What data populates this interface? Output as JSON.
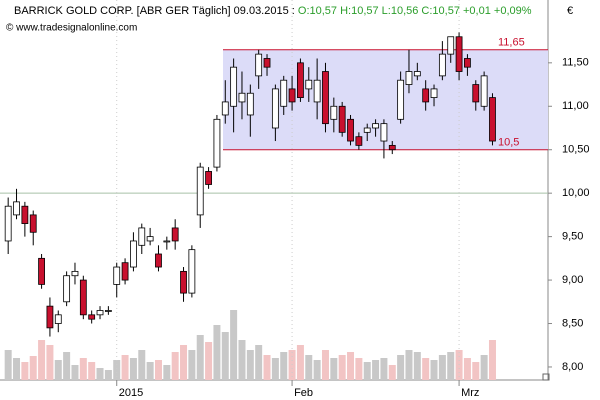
{
  "chart_data": {
    "type": "candlestick",
    "title": "BARRICK GOLD CORP. [ABR GER Täglich] 09.03.2015 :",
    "quote": "O:10,57 H:10,57 L:10,56 C:10,57 +0,01 +0,09%",
    "watermark": "© www.tradesignalonline.com",
    "currency": "€",
    "categories": [
      null,
      null,
      null,
      null,
      null,
      null,
      null,
      null,
      null,
      null,
      null,
      null,
      null,
      "2015",
      null,
      null,
      null,
      null,
      null,
      null,
      null,
      null,
      null,
      null,
      null,
      null,
      null,
      null,
      null,
      null,
      null,
      null,
      null,
      null,
      "Feb",
      null,
      null,
      null,
      null,
      null,
      null,
      null,
      null,
      null,
      null,
      null,
      null,
      null,
      null,
      null,
      null,
      null,
      null,
      null,
      "Mrz",
      null,
      null,
      null,
      null
    ],
    "open": [
      9.45,
      9.75,
      9.85,
      9.75,
      9.25,
      8.7,
      8.5,
      8.75,
      9.05,
      9.0,
      8.6,
      8.6,
      8.65,
      8.95,
      9.2,
      9.15,
      9.4,
      9.45,
      9.3,
      9.45,
      9.6,
      9.1,
      8.85,
      9.75,
      10.25,
      10.3,
      10.9,
      11.0,
      11.05,
      10.9,
      11.35,
      11.55,
      10.75,
      11.0,
      11.2,
      11.5,
      11.2,
      11.05,
      11.4,
      10.85,
      11.0,
      10.85,
      10.65,
      10.7,
      10.75,
      10.6,
      10.55,
      10.85,
      11.25,
      11.35,
      11.2,
      11.1,
      11.35,
      11.6,
      11.8,
      11.55,
      11.25,
      11.0,
      11.1
    ],
    "high": [
      9.95,
      10.05,
      9.9,
      9.8,
      9.3,
      8.8,
      8.65,
      9.1,
      9.2,
      9.05,
      8.65,
      8.7,
      8.7,
      9.2,
      9.25,
      9.55,
      9.65,
      9.6,
      9.4,
      9.5,
      9.7,
      9.15,
      9.4,
      10.35,
      10.3,
      10.9,
      11.3,
      11.55,
      11.4,
      11.25,
      11.65,
      11.6,
      11.25,
      11.35,
      11.35,
      11.55,
      11.45,
      11.55,
      11.5,
      11.1,
      11.05,
      10.9,
      10.7,
      10.8,
      10.85,
      10.85,
      10.6,
      11.4,
      11.65,
      11.5,
      11.3,
      11.25,
      11.75,
      11.8,
      11.85,
      11.6,
      11.3,
      11.4,
      11.15
    ],
    "low": [
      9.3,
      9.7,
      9.5,
      9.4,
      8.9,
      8.35,
      8.4,
      8.7,
      8.95,
      8.55,
      8.5,
      8.55,
      8.6,
      8.8,
      8.95,
      9.1,
      9.3,
      9.4,
      9.1,
      9.35,
      9.35,
      8.75,
      8.8,
      9.6,
      10.05,
      10.25,
      10.8,
      10.7,
      10.85,
      10.65,
      11.2,
      11.35,
      10.6,
      10.9,
      10.95,
      11.05,
      11.05,
      10.85,
      10.7,
      10.7,
      10.65,
      10.55,
      10.5,
      10.6,
      10.65,
      10.4,
      10.45,
      10.8,
      11.15,
      11.3,
      10.95,
      11.0,
      11.3,
      11.5,
      11.3,
      11.35,
      10.95,
      10.95,
      10.55
    ],
    "close": [
      9.85,
      9.9,
      9.65,
      9.55,
      8.95,
      8.45,
      8.6,
      9.05,
      9.1,
      8.6,
      8.55,
      8.65,
      8.65,
      9.15,
      9.0,
      9.45,
      9.6,
      9.5,
      9.15,
      9.45,
      9.45,
      8.85,
      9.35,
      10.3,
      10.1,
      10.85,
      11.05,
      11.45,
      11.15,
      11.15,
      11.6,
      11.45,
      11.2,
      11.3,
      11.05,
      11.1,
      11.3,
      11.3,
      10.8,
      11.0,
      10.7,
      10.6,
      10.55,
      10.75,
      10.8,
      10.8,
      10.5,
      11.3,
      11.4,
      11.4,
      11.05,
      11.2,
      11.6,
      11.8,
      11.4,
      11.45,
      11.05,
      11.35,
      10.6
    ],
    "volume": [
      30,
      22,
      18,
      24,
      40,
      35,
      20,
      28,
      15,
      22,
      18,
      12,
      10,
      20,
      25,
      22,
      30,
      18,
      20,
      15,
      28,
      35,
      30,
      45,
      38,
      55,
      48,
      70,
      40,
      30,
      35,
      25,
      22,
      28,
      30,
      35,
      25,
      20,
      30,
      22,
      25,
      28,
      22,
      18,
      20,
      22,
      15,
      25,
      30,
      28,
      22,
      20,
      25,
      28,
      30,
      22,
      18,
      25,
      40
    ],
    "up_color": "#ffffff",
    "down_color": "#c8102e",
    "up_volume_color": "#c8c8c8",
    "down_volume_color": "#f2c4c4",
    "ylim": [
      7.85,
      12.2
    ],
    "yticks": [
      {
        "value": 8.0,
        "label": "8,00"
      },
      {
        "value": 8.5,
        "label": "8,50"
      },
      {
        "value": 9.0,
        "label": "9,00"
      },
      {
        "value": 9.5,
        "label": "9,50"
      },
      {
        "value": 10.0,
        "label": "10,00"
      },
      {
        "value": 10.5,
        "label": "10,50"
      },
      {
        "value": 11.0,
        "label": "11,00"
      },
      {
        "value": 11.5,
        "label": "11,50"
      }
    ],
    "hline": 10.0,
    "zone": {
      "top": {
        "value": 11.65,
        "label": "11,65"
      },
      "bottom": {
        "value": 10.5,
        "label": "10,5"
      }
    }
  }
}
